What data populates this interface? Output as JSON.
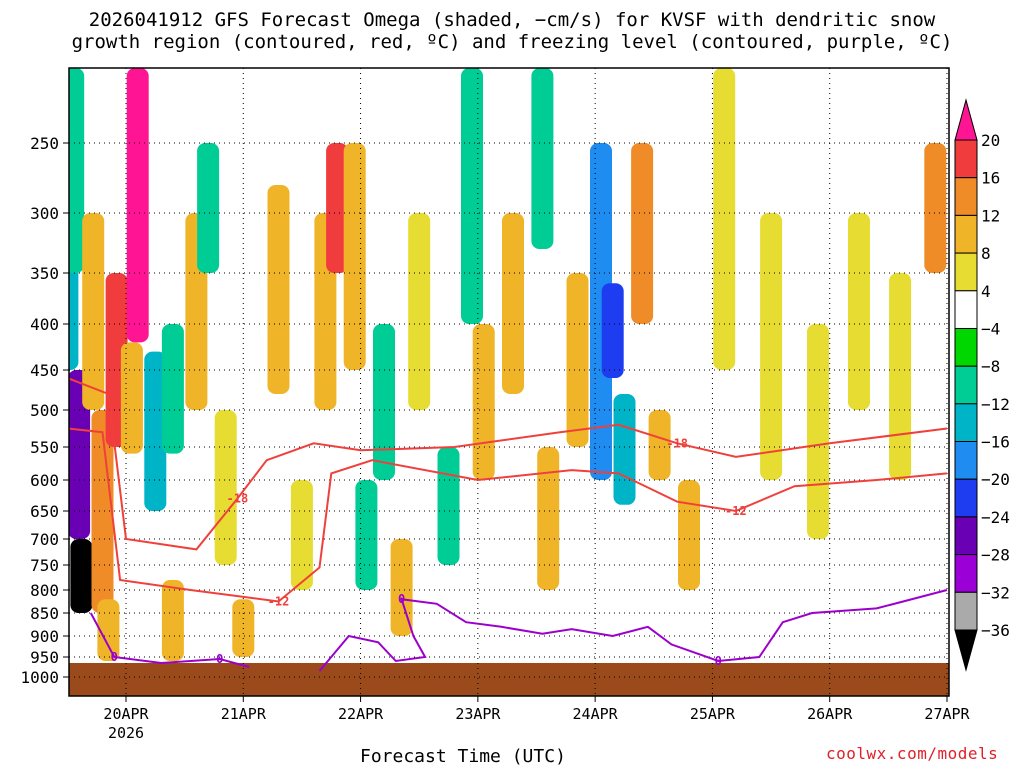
{
  "title_line1": "2026041912 GFS Forecast Omega (shaded, −cm/s) for KVSF with dendritic snow",
  "title_line2": "growth region (contoured, red, ºC) and freezing level (contoured, purple, ºC)",
  "xlabel": "Forecast Time (UTC)",
  "credit": "coolwx.com/models",
  "colors": {
    "ground": "#9b4a1c",
    "dgz_contour": "#f0403c",
    "freezing_contour": "#9b00cc"
  },
  "chart_data": {
    "type": "heatmap",
    "title": "2026041912 GFS Forecast Omega (shaded, −cm/s) for KVSF with dendritic snow growth region (contoured, red, ºC) and freezing level (contoured, purple, ºC)",
    "xlabel": "Forecast Time (UTC)",
    "ylabel": "",
    "x_tick_labels": [
      "20APR",
      "21APR",
      "22APR",
      "23APR",
      "24APR",
      "25APR",
      "26APR",
      "27APR"
    ],
    "x_year_label": "2026",
    "x_days": [
      0.5,
      1.5,
      2.5,
      3.5,
      4.5,
      5.5,
      6.5,
      7.5
    ],
    "xlim": [
      0,
      7.5
    ],
    "y_ticks": [
      250,
      300,
      350,
      400,
      450,
      500,
      550,
      600,
      650,
      700,
      750,
      800,
      850,
      900,
      950,
      1000
    ],
    "y_tick_labels": [
      "250",
      "300",
      "350",
      "400",
      "450",
      "500",
      "550",
      "600",
      "650",
      "700",
      "750",
      "800",
      "850",
      "900",
      "950",
      "1000"
    ],
    "ylim": [
      200,
      1000
    ],
    "grid": true,
    "colorbar": {
      "levels": [
        20,
        16,
        12,
        8,
        4,
        -4,
        -8,
        -12,
        -16,
        -20,
        -24,
        -28,
        -32,
        -36
      ],
      "labels": [
        "20",
        "16",
        "12",
        "8",
        "4",
        "−4",
        "−8",
        "−12",
        "−16",
        "−20",
        "−24",
        "−28",
        "−32",
        "−36"
      ],
      "colors": [
        "#ff1493",
        "#f03c3c",
        "#f08c28",
        "#f0b428",
        "#e6dc32",
        "#ffffff",
        "#00d700",
        "#00cc96",
        "#00b4c8",
        "#1e8cf0",
        "#1e3cf0",
        "#6a00b4",
        "#9b00d7",
        "#aaaaaa",
        "#000000"
      ]
    },
    "omega_cells": [
      {
        "t": 0.0,
        "p1": 250,
        "p2": 450,
        "v": -12
      },
      {
        "t": 0.1,
        "p1": 450,
        "p2": 700,
        "v": -24
      },
      {
        "t": 0.12,
        "p1": 700,
        "p2": 850,
        "v": -36
      },
      {
        "t": 0.05,
        "p1": 200,
        "p2": 350,
        "v": -8
      },
      {
        "t": 0.22,
        "p1": 300,
        "p2": 500,
        "v": 8
      },
      {
        "t": 0.3,
        "p1": 500,
        "p2": 850,
        "v": 12
      },
      {
        "t": 0.42,
        "p1": 350,
        "p2": 550,
        "v": 16
      },
      {
        "t": 0.6,
        "p1": 200,
        "p2": 420,
        "v": 20
      },
      {
        "t": 0.55,
        "p1": 420,
        "p2": 560,
        "v": 8
      },
      {
        "t": 0.35,
        "p1": 820,
        "p2": 960,
        "v": 8
      },
      {
        "t": 0.75,
        "p1": 430,
        "p2": 650,
        "v": -12
      },
      {
        "t": 0.9,
        "p1": 400,
        "p2": 560,
        "v": -8
      },
      {
        "t": 0.9,
        "p1": 780,
        "p2": 960,
        "v": 8
      },
      {
        "t": 1.1,
        "p1": 300,
        "p2": 500,
        "v": 8
      },
      {
        "t": 1.2,
        "p1": 250,
        "p2": 350,
        "v": -8
      },
      {
        "t": 1.35,
        "p1": 500,
        "p2": 750,
        "v": 4
      },
      {
        "t": 1.5,
        "p1": 820,
        "p2": 950,
        "v": 8
      },
      {
        "t": 1.8,
        "p1": 280,
        "p2": 480,
        "v": 8
      },
      {
        "t": 2.0,
        "p1": 600,
        "p2": 800,
        "v": 4
      },
      {
        "t": 2.2,
        "p1": 300,
        "p2": 500,
        "v": 8
      },
      {
        "t": 2.3,
        "p1": 250,
        "p2": 350,
        "v": 16
      },
      {
        "t": 2.45,
        "p1": 250,
        "p2": 450,
        "v": 8
      },
      {
        "t": 2.7,
        "p1": 400,
        "p2": 600,
        "v": -8
      },
      {
        "t": 2.55,
        "p1": 600,
        "p2": 800,
        "v": -8
      },
      {
        "t": 2.85,
        "p1": 700,
        "p2": 900,
        "v": 8
      },
      {
        "t": 3.0,
        "p1": 300,
        "p2": 500,
        "v": 4
      },
      {
        "t": 3.25,
        "p1": 550,
        "p2": 750,
        "v": -8
      },
      {
        "t": 3.45,
        "p1": 200,
        "p2": 400,
        "v": -8
      },
      {
        "t": 3.55,
        "p1": 400,
        "p2": 600,
        "v": 8
      },
      {
        "t": 3.8,
        "p1": 300,
        "p2": 480,
        "v": 8
      },
      {
        "t": 4.05,
        "p1": 200,
        "p2": 330,
        "v": -8
      },
      {
        "t": 4.1,
        "p1": 550,
        "p2": 800,
        "v": 8
      },
      {
        "t": 4.35,
        "p1": 350,
        "p2": 550,
        "v": 8
      },
      {
        "t": 4.55,
        "p1": 250,
        "p2": 600,
        "v": -16
      },
      {
        "t": 4.65,
        "p1": 360,
        "p2": 460,
        "v": -20
      },
      {
        "t": 4.75,
        "p1": 480,
        "p2": 640,
        "v": -12
      },
      {
        "t": 4.9,
        "p1": 250,
        "p2": 400,
        "v": 12
      },
      {
        "t": 5.05,
        "p1": 500,
        "p2": 600,
        "v": 8
      },
      {
        "t": 5.3,
        "p1": 600,
        "p2": 800,
        "v": 8
      },
      {
        "t": 5.6,
        "p1": 200,
        "p2": 450,
        "v": 4
      },
      {
        "t": 6.0,
        "p1": 300,
        "p2": 600,
        "v": 4
      },
      {
        "t": 6.4,
        "p1": 400,
        "p2": 700,
        "v": 4
      },
      {
        "t": 6.75,
        "p1": 300,
        "p2": 500,
        "v": 4
      },
      {
        "t": 7.1,
        "p1": 350,
        "p2": 600,
        "v": 4
      },
      {
        "t": 7.4,
        "p1": 250,
        "p2": 350,
        "v": 12
      }
    ],
    "dgz_contours": [
      {
        "label": "-18",
        "points": [
          [
            0.0,
            460
          ],
          [
            0.35,
            480
          ],
          [
            0.5,
            700
          ],
          [
            1.1,
            720
          ],
          [
            1.45,
            630
          ],
          [
            1.7,
            570
          ],
          [
            2.1,
            545
          ],
          [
            2.5,
            555
          ],
          [
            3.3,
            550
          ],
          [
            4.2,
            530
          ],
          [
            4.7,
            520
          ],
          [
            5.2,
            545
          ],
          [
            5.7,
            565
          ],
          [
            6.5,
            545
          ],
          [
            7.5,
            525
          ]
        ]
      },
      {
        "label": "-12",
        "points": [
          [
            0.0,
            525
          ],
          [
            0.3,
            530
          ],
          [
            0.45,
            780
          ],
          [
            1.05,
            800
          ],
          [
            1.8,
            825
          ],
          [
            2.15,
            755
          ],
          [
            2.25,
            590
          ],
          [
            2.6,
            570
          ],
          [
            3.5,
            600
          ],
          [
            4.3,
            585
          ],
          [
            4.7,
            590
          ],
          [
            5.2,
            635
          ],
          [
            5.7,
            650
          ],
          [
            6.2,
            610
          ],
          [
            6.9,
            600
          ],
          [
            7.5,
            590
          ]
        ]
      }
    ],
    "freezing_contours": [
      {
        "label": "0",
        "points": [
          [
            0.2,
            850
          ],
          [
            0.4,
            950
          ],
          [
            0.8,
            965
          ],
          [
            1.3,
            955
          ],
          [
            1.55,
            975
          ]
        ]
      },
      {
        "label": "0",
        "points": [
          [
            2.15,
            985
          ],
          [
            2.4,
            900
          ],
          [
            2.65,
            915
          ],
          [
            2.8,
            960
          ],
          [
            3.05,
            950
          ],
          [
            2.95,
            900
          ],
          [
            2.85,
            820
          ],
          [
            3.15,
            830
          ],
          [
            3.4,
            870
          ],
          [
            3.7,
            880
          ],
          [
            4.05,
            895
          ],
          [
            4.3,
            885
          ],
          [
            4.65,
            900
          ],
          [
            4.95,
            880
          ],
          [
            5.15,
            920
          ],
          [
            5.55,
            960
          ],
          [
            5.9,
            950
          ],
          [
            6.1,
            870
          ],
          [
            6.35,
            850
          ],
          [
            6.9,
            840
          ],
          [
            7.5,
            800
          ]
        ]
      }
    ]
  }
}
